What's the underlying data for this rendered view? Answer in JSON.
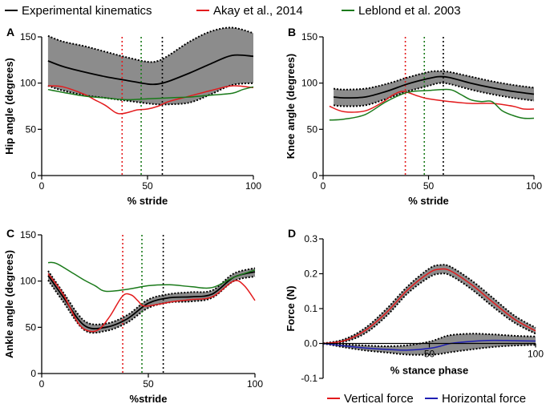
{
  "figure_legend": [
    {
      "label": "Experimental kinematics",
      "color": "#000000"
    },
    {
      "label": "Akay et al., 2014",
      "color": "#e31a1c"
    },
    {
      "label": "Leblond et al. 2003",
      "color": "#1a7a1a"
    }
  ],
  "force_legend": [
    {
      "label": "Vertical force",
      "color": "#e31a1c"
    },
    {
      "label": "Horizontal force",
      "color": "#1f1fb4"
    }
  ],
  "colors": {
    "band": "#8c8c8c",
    "mean": "#000000",
    "akay": "#e31a1c",
    "leblond": "#1a7a1a",
    "vertical": "#e31a1c",
    "horizontal": "#1f1fb4"
  },
  "chart_data": [
    {
      "panel": "A",
      "type": "line",
      "xlabel": "% stride",
      "ylabel": "Hip angle (degrees)",
      "xlim": [
        0,
        100
      ],
      "ylim": [
        0,
        150
      ],
      "xticks": [
        "0",
        "50",
        "100"
      ],
      "yticks": [
        "0",
        "50",
        "100",
        "150"
      ],
      "band": {
        "x": [
          3,
          10,
          20,
          30,
          40,
          50,
          55,
          60,
          70,
          80,
          90,
          100
        ],
        "upper": [
          151,
          145,
          140,
          134,
          128,
          123,
          124,
          130,
          145,
          156,
          160,
          154
        ],
        "lower": [
          97,
          92,
          87,
          84,
          81,
          78,
          77,
          77,
          79,
          88,
          98,
          100
        ]
      },
      "series": [
        {
          "name": "Experimental kinematics",
          "color": "#000000",
          "x": [
            3,
            10,
            20,
            30,
            40,
            50,
            55,
            60,
            70,
            80,
            90,
            100
          ],
          "values": [
            124,
            118,
            112,
            107,
            103,
            99,
            99,
            102,
            111,
            121,
            130,
            129
          ]
        },
        {
          "name": "Akay et al., 2014",
          "color": "#e31a1c",
          "x": [
            3,
            10,
            20,
            25,
            30,
            35,
            38,
            42,
            45,
            50,
            55,
            60,
            70,
            80,
            90,
            100
          ],
          "values": [
            97,
            96,
            88,
            82,
            76,
            68,
            67,
            69,
            71,
            72,
            75,
            80,
            86,
            92,
            97,
            95
          ]
        },
        {
          "name": "Leblond et al. 2003",
          "color": "#1a7a1a",
          "x": [
            3,
            10,
            20,
            30,
            40,
            50,
            60,
            70,
            80,
            90,
            95,
            100
          ],
          "values": [
            93,
            90,
            86,
            84,
            82,
            83,
            84,
            85,
            87,
            89,
            93,
            96
          ]
        }
      ],
      "vlines": [
        {
          "x": 38,
          "color": "#e31a1c"
        },
        {
          "x": 47,
          "color": "#1a7a1a"
        },
        {
          "x": 57,
          "color": "#000000"
        }
      ]
    },
    {
      "panel": "B",
      "type": "line",
      "xlabel": "% stride",
      "ylabel": "Knee angle (degrees)",
      "xlim": [
        0,
        100
      ],
      "ylim": [
        0,
        150
      ],
      "xticks": [
        "0",
        "50",
        "100"
      ],
      "yticks": [
        "0",
        "50",
        "100",
        "150"
      ],
      "band": {
        "x": [
          5,
          10,
          20,
          30,
          40,
          50,
          55,
          60,
          70,
          80,
          90,
          100
        ],
        "upper": [
          94,
          93,
          94,
          99,
          106,
          112,
          113,
          112,
          107,
          102,
          98,
          95
        ],
        "lower": [
          76,
          75,
          76,
          83,
          91,
          97,
          100,
          99,
          93,
          88,
          84,
          81
        ]
      },
      "series": [
        {
          "name": "Experimental kinematics",
          "color": "#000000",
          "x": [
            5,
            10,
            20,
            30,
            40,
            50,
            55,
            60,
            70,
            80,
            90,
            100
          ],
          "values": [
            85,
            84,
            85,
            91,
            99,
            105,
            107,
            106,
            100,
            95,
            91,
            88
          ]
        },
        {
          "name": "Akay et al., 2014",
          "color": "#e31a1c",
          "x": [
            3,
            10,
            20,
            28,
            33,
            38,
            45,
            50,
            60,
            70,
            80,
            90,
            95,
            100
          ],
          "values": [
            75,
            69,
            70,
            79,
            87,
            91,
            86,
            83,
            80,
            78,
            78,
            75,
            72,
            72
          ]
        },
        {
          "name": "Leblond et al. 2003",
          "color": "#1a7a1a",
          "x": [
            3,
            10,
            20,
            30,
            40,
            50,
            60,
            65,
            70,
            75,
            80,
            85,
            90,
            95,
            100
          ],
          "values": [
            60,
            61,
            66,
            80,
            90,
            92,
            93,
            88,
            82,
            80,
            80,
            70,
            65,
            62,
            62
          ]
        }
      ],
      "vlines": [
        {
          "x": 39,
          "color": "#e31a1c"
        },
        {
          "x": 48,
          "color": "#1a7a1a"
        },
        {
          "x": 57,
          "color": "#000000"
        }
      ]
    },
    {
      "panel": "C",
      "type": "line",
      "xlabel": "%stride",
      "ylabel": "Ankle angle (degrees)",
      "xlim": [
        0,
        100
      ],
      "ylim": [
        0,
        150
      ],
      "xticks": [
        "0",
        "50",
        "100"
      ],
      "yticks": [
        "0",
        "50",
        "100",
        "150"
      ],
      "band": {
        "x": [
          3,
          10,
          20,
          30,
          40,
          50,
          60,
          70,
          80,
          90,
          100
        ],
        "upper": [
          111,
          88,
          57,
          54,
          63,
          80,
          86,
          88,
          90,
          108,
          114
        ],
        "lower": [
          101,
          78,
          47,
          46,
          55,
          71,
          77,
          78,
          82,
          100,
          105
        ]
      },
      "series": [
        {
          "name": "Experimental kinematics",
          "color": "#000000",
          "x": [
            3,
            10,
            20,
            30,
            40,
            50,
            60,
            70,
            80,
            90,
            100
          ],
          "values": [
            106,
            83,
            52,
            50,
            59,
            76,
            82,
            83,
            86,
            104,
            110
          ]
        },
        {
          "name": "Akay et al., 2014",
          "color": "#e31a1c",
          "x": [
            3,
            10,
            17,
            22,
            27,
            32,
            38,
            42,
            45,
            48,
            55,
            62,
            70,
            80,
            90,
            95,
            100
          ],
          "values": [
            108,
            86,
            55,
            46,
            48,
            62,
            84,
            85,
            79,
            73,
            75,
            78,
            80,
            83,
            100,
            95,
            79
          ]
        },
        {
          "name": "Leblond et al. 2003",
          "color": "#1a7a1a",
          "x": [
            3,
            7,
            15,
            20,
            25,
            30,
            40,
            50,
            60,
            70,
            80,
            90,
            100
          ],
          "values": [
            120,
            119,
            108,
            101,
            95,
            89,
            91,
            95,
            96,
            94,
            93,
            104,
            112
          ]
        }
      ],
      "vlines": [
        {
          "x": 38,
          "color": "#e31a1c"
        },
        {
          "x": 47,
          "color": "#1a7a1a"
        },
        {
          "x": 57,
          "color": "#000000"
        }
      ]
    },
    {
      "panel": "D",
      "type": "line",
      "xlabel": "% stance phase",
      "ylabel": "Force (N)",
      "xlim": [
        0,
        100
      ],
      "ylim": [
        -0.1,
        0.3
      ],
      "xticks": [
        "50",
        "100"
      ],
      "yticks": [
        "-0.1",
        "0.0",
        "0.1",
        "0.2",
        "0.3"
      ],
      "band": {
        "x": [
          0,
          10,
          20,
          30,
          40,
          50,
          55,
          60,
          70,
          80,
          90,
          100
        ],
        "upper": [
          0.0,
          0.012,
          0.045,
          0.1,
          0.165,
          0.215,
          0.225,
          0.22,
          0.18,
          0.13,
          0.08,
          0.045
        ],
        "lower": [
          0.0,
          0.005,
          0.03,
          0.08,
          0.145,
          0.19,
          0.2,
          0.195,
          0.155,
          0.105,
          0.06,
          0.028
        ]
      },
      "band2": {
        "x": [
          0,
          10,
          20,
          30,
          40,
          50,
          55,
          60,
          70,
          80,
          90,
          100
        ],
        "upper": [
          0.0,
          -0.003,
          -0.006,
          -0.008,
          -0.005,
          0.005,
          0.015,
          0.024,
          0.028,
          0.026,
          0.022,
          0.02
        ],
        "lower": [
          0.0,
          -0.011,
          -0.02,
          -0.026,
          -0.032,
          -0.032,
          -0.03,
          -0.025,
          -0.017,
          -0.01,
          -0.006,
          -0.004
        ]
      },
      "series": [
        {
          "name": "Vertical force",
          "color": "#e31a1c",
          "x": [
            0,
            10,
            20,
            30,
            40,
            50,
            55,
            60,
            70,
            80,
            90,
            100
          ],
          "values": [
            0.0,
            0.008,
            0.038,
            0.09,
            0.155,
            0.203,
            0.213,
            0.208,
            0.168,
            0.118,
            0.07,
            0.036
          ]
        },
        {
          "name": "Horizontal force",
          "color": "#1f1fb4",
          "x": [
            0,
            10,
            20,
            30,
            40,
            50,
            55,
            60,
            70,
            80,
            90,
            100
          ],
          "values": [
            0.0,
            -0.007,
            -0.013,
            -0.017,
            -0.019,
            -0.014,
            -0.008,
            0.0,
            0.006,
            0.009,
            0.008,
            0.007
          ]
        }
      ],
      "vlines": []
    }
  ]
}
